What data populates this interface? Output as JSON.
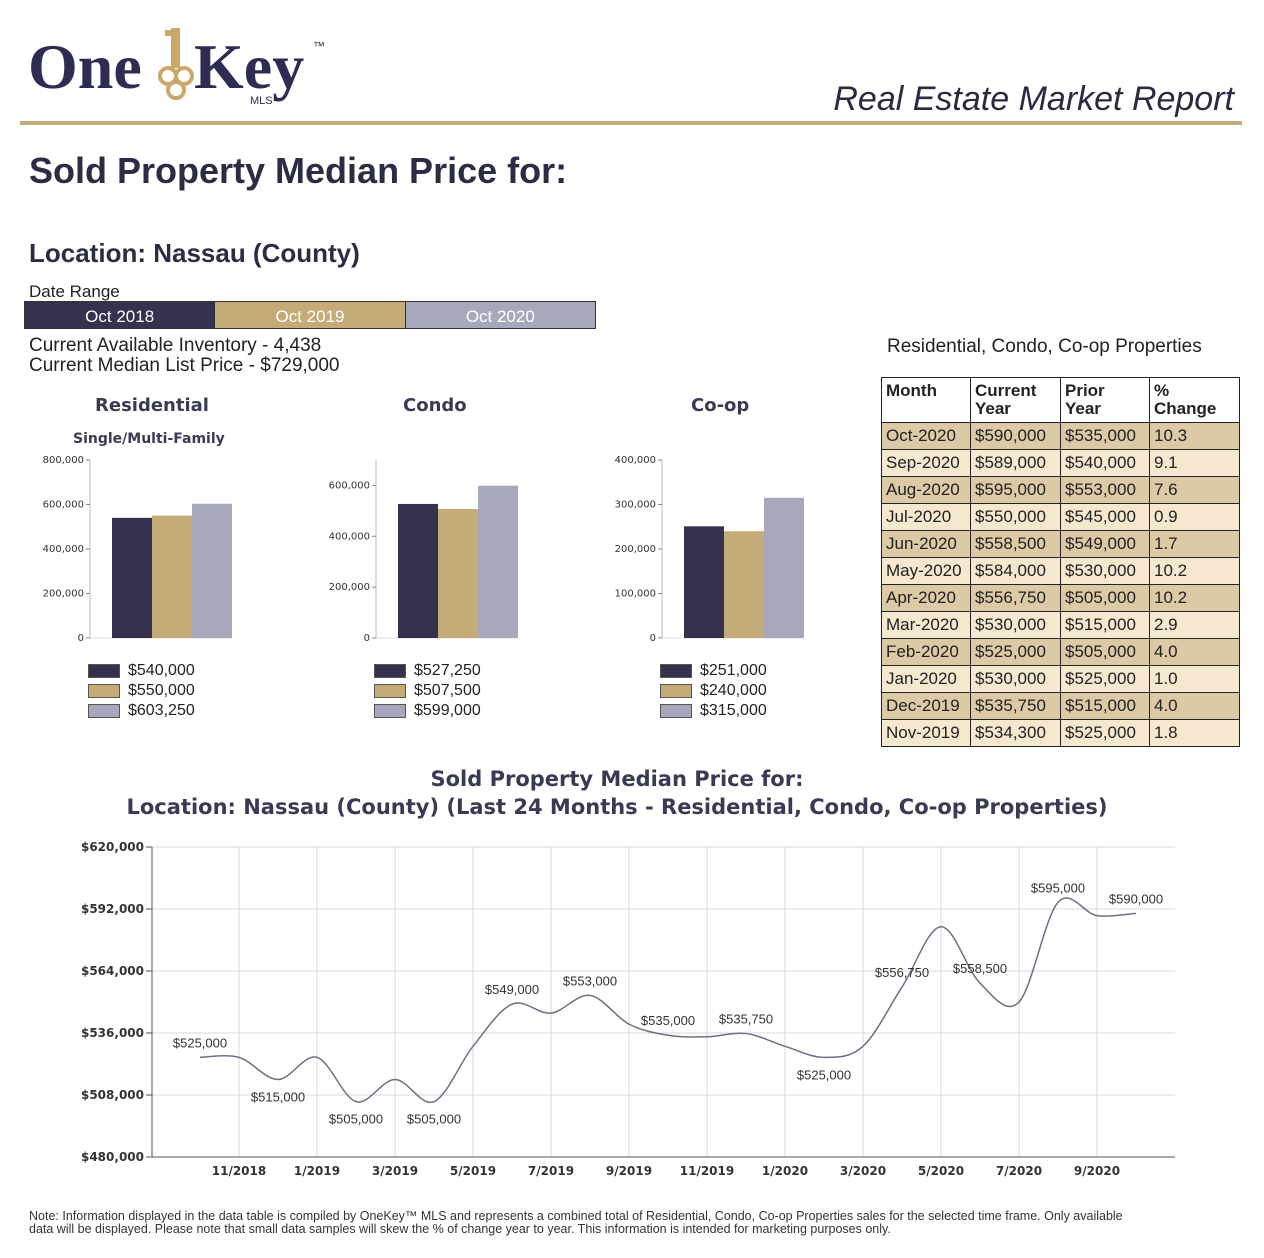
{
  "header": {
    "logo_text_left": "One",
    "logo_text_right": "Key",
    "logo_tm": "™",
    "logo_mls": "MLS",
    "report_title": "Real Estate Market Report"
  },
  "page": {
    "title": "Sold Property Median Price for:",
    "location": "Location: Nassau (County)",
    "date_range_label": "Date Range",
    "date_ranges": [
      "Oct 2018",
      "Oct 2019",
      "Oct 2020"
    ],
    "inventory": "Current Available Inventory - 4,438",
    "median_list": "Current Median List Price - $729,000",
    "note_line1": "Note: Information displayed in the data table is compiled by OneKey™ MLS and represents a combined total of Residential, Condo, Co-op Properties sales for the selected time frame. Only available",
    "note_line2": "data will be displayed. Please note that small data samples will skew the % of change year to year. This information is intended for marketing purposes only."
  },
  "colors": {
    "navy": "#34324f",
    "gold": "#c4ab78",
    "gray": "#a8a8bc",
    "rule": "#c2ac7a"
  },
  "mini_charts": [
    {
      "title": "Residential",
      "subtitle": "Single/Multi-Family",
      "yticks": [
        "0",
        "200,000",
        "400,000",
        "600,000",
        "800,000"
      ],
      "legend": [
        "$540,000",
        "$550,000",
        "$603,250"
      ]
    },
    {
      "title": "Condo",
      "subtitle": "",
      "yticks": [
        "0",
        "200,000",
        "400,000",
        "600,000"
      ],
      "legend": [
        "$527,250",
        "$507,500",
        "$599,000"
      ]
    },
    {
      "title": "Co-op",
      "subtitle": "",
      "yticks": [
        "0",
        "100,000",
        "200,000",
        "300,000",
        "400,000"
      ],
      "legend": [
        "$251,000",
        "$240,000",
        "$315,000"
      ]
    }
  ],
  "table": {
    "title": "Residential, Condo, Co-op Properties",
    "headers": [
      "Month",
      "Current Year",
      "Prior Year",
      "% Change"
    ],
    "rows": [
      [
        "Oct-2020",
        "$590,000",
        "$535,000",
        "10.3"
      ],
      [
        "Sep-2020",
        "$589,000",
        "$540,000",
        "9.1"
      ],
      [
        "Aug-2020",
        "$595,000",
        "$553,000",
        "7.6"
      ],
      [
        "Jul-2020",
        "$550,000",
        "$545,000",
        "0.9"
      ],
      [
        "Jun-2020",
        "$558,500",
        "$549,000",
        "1.7"
      ],
      [
        "May-2020",
        "$584,000",
        "$530,000",
        "10.2"
      ],
      [
        "Apr-2020",
        "$556,750",
        "$505,000",
        "10.2"
      ],
      [
        "Mar-2020",
        "$530,000",
        "$515,000",
        "2.9"
      ],
      [
        "Feb-2020",
        "$525,000",
        "$505,000",
        "4.0"
      ],
      [
        "Jan-2020",
        "$530,000",
        "$525,000",
        "1.0"
      ],
      [
        "Dec-2019",
        "$535,750",
        "$515,000",
        "4.0"
      ],
      [
        "Nov-2019",
        "$534,300",
        "$525,000",
        "1.8"
      ]
    ]
  },
  "line_chart": {
    "title_line1": "Sold Property Median Price for:",
    "title_line2": "Location: Nassau (County) (Last 24 Months - Residential, Condo, Co-op Properties)"
  },
  "chart_data": [
    {
      "type": "bar",
      "title": "Residential",
      "subtitle": "Single/Multi-Family",
      "categories": [
        "Oct 2018",
        "Oct 2019",
        "Oct 2020"
      ],
      "values": [
        540000,
        550000,
        603250
      ],
      "ylim": [
        0,
        800000
      ]
    },
    {
      "type": "bar",
      "title": "Condo",
      "categories": [
        "Oct 2018",
        "Oct 2019",
        "Oct 2020"
      ],
      "values": [
        527250,
        507500,
        599000
      ],
      "ylim": [
        0,
        700000
      ]
    },
    {
      "type": "bar",
      "title": "Co-op",
      "categories": [
        "Oct 2018",
        "Oct 2019",
        "Oct 2020"
      ],
      "values": [
        251000,
        240000,
        315000
      ],
      "ylim": [
        0,
        400000
      ]
    },
    {
      "type": "line",
      "title": "Sold Property Median Price for: Location: Nassau (County) (Last 24 Months - Residential, Condo, Co-op Properties)",
      "x": [
        "10/2018",
        "11/2018",
        "12/2018",
        "1/2019",
        "2/2019",
        "3/2019",
        "4/2019",
        "5/2019",
        "6/2019",
        "7/2019",
        "8/2019",
        "9/2019",
        "10/2019",
        "11/2019",
        "12/2019",
        "1/2020",
        "2/2020",
        "3/2020",
        "4/2020",
        "5/2020",
        "6/2020",
        "7/2020",
        "8/2020",
        "9/2020",
        "10/2020"
      ],
      "values": [
        525000,
        525000,
        515000,
        525000,
        505000,
        515000,
        505000,
        530000,
        549000,
        545000,
        553000,
        540000,
        535000,
        534300,
        535750,
        530000,
        525000,
        530000,
        556750,
        584000,
        558500,
        550000,
        595000,
        589000,
        590000
      ],
      "xticks": [
        "11/2018",
        "1/2019",
        "3/2019",
        "5/2019",
        "7/2019",
        "9/2019",
        "11/2019",
        "1/2020",
        "3/2020",
        "5/2020",
        "7/2020",
        "9/2020"
      ],
      "yticks": [
        "$480,000",
        "$508,000",
        "$536,000",
        "$564,000",
        "$592,000",
        "$620,000"
      ],
      "ylim": [
        480000,
        620000
      ],
      "grid": true,
      "data_labels": [
        {
          "index": 0,
          "text": "$525,000"
        },
        {
          "index": 2,
          "text": "$515,000"
        },
        {
          "index": 4,
          "text": "$505,000"
        },
        {
          "index": 6,
          "text": "$505,000"
        },
        {
          "index": 8,
          "text": "$549,000"
        },
        {
          "index": 10,
          "text": "$553,000"
        },
        {
          "index": 12,
          "text": "$535,000"
        },
        {
          "index": 14,
          "text": "$535,750"
        },
        {
          "index": 16,
          "text": "$525,000"
        },
        {
          "index": 18,
          "text": "$556,750"
        },
        {
          "index": 20,
          "text": "$558,500"
        },
        {
          "index": 22,
          "text": "$595,000"
        },
        {
          "index": 24,
          "text": "$590,000"
        }
      ]
    }
  ]
}
